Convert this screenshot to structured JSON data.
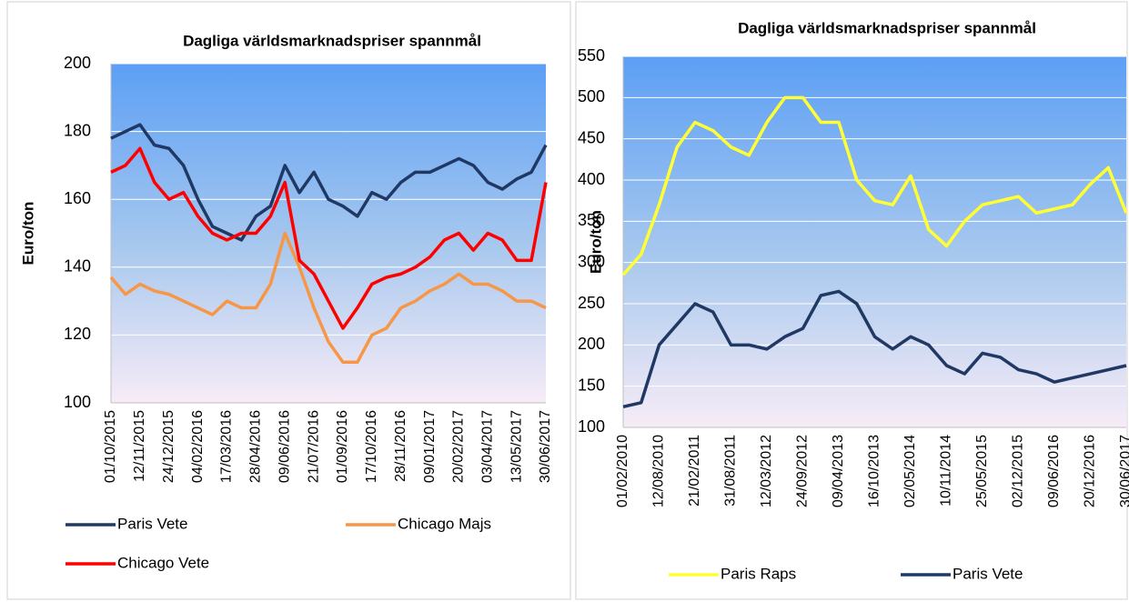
{
  "chart_data": [
    {
      "type": "line",
      "title": "Dagliga världsmarknadspriser spannmål",
      "y_label": "Euro/ton",
      "categories": [
        "01/10/2015",
        null,
        "12/11/2015",
        null,
        "24/12/2015",
        null,
        "04/02/2016",
        null,
        "17/03/2016",
        null,
        "28/04/2016",
        null,
        "09/06/2016",
        null,
        "21/07/2016",
        null,
        "01/09/2016",
        null,
        "17/10/2016",
        null,
        "28/11/2016",
        null,
        "09/01/2017",
        null,
        "20/02/2017",
        null,
        "03/04/2017",
        null,
        "13/05/2017",
        null,
        "30/06/2017"
      ],
      "series": [
        {
          "name": "Paris Vete",
          "color": "#1f3864",
          "values": [
            178,
            180,
            182,
            176,
            175,
            170,
            160,
            152,
            150,
            148,
            155,
            158,
            170,
            162,
            168,
            160,
            158,
            155,
            162,
            160,
            165,
            168,
            168,
            170,
            172,
            170,
            165,
            163,
            166,
            168,
            176
          ]
        },
        {
          "name": "Chicago Majs",
          "color": "#f79646",
          "values": [
            137,
            132,
            135,
            133,
            132,
            130,
            128,
            126,
            130,
            128,
            128,
            135,
            150,
            140,
            128,
            118,
            112,
            112,
            120,
            122,
            128,
            130,
            133,
            135,
            138,
            135,
            135,
            133,
            130,
            130,
            128
          ]
        },
        {
          "name": "Chicago Vete",
          "color": "#ff0000",
          "values": [
            168,
            170,
            175,
            165,
            160,
            162,
            155,
            150,
            148,
            150,
            150,
            155,
            165,
            142,
            138,
            130,
            122,
            128,
            135,
            137,
            138,
            140,
            143,
            148,
            150,
            145,
            150,
            148,
            142,
            142,
            165
          ]
        }
      ],
      "ylim": [
        100,
        200
      ],
      "yticks": [
        100,
        120,
        140,
        160,
        180,
        200
      ],
      "grid": true,
      "legend": "bottom"
    },
    {
      "type": "line",
      "title": "Dagliga världsmarknadspriser spannmål",
      "y_label": "Euro/ton",
      "categories": [
        "01/02/2010",
        null,
        "12/08/2010",
        null,
        "21/02/2011",
        null,
        "31/08/2011",
        null,
        "12/03/2012",
        null,
        "24/09/2012",
        null,
        "09/04/2013",
        null,
        "16/10/2013",
        null,
        "02/05/2014",
        null,
        "10/11/2014",
        null,
        "25/05/2015",
        null,
        "02/12/2015",
        null,
        "09/06/2016",
        null,
        "20/12/2016",
        null,
        "30/06/2017"
      ],
      "series": [
        {
          "name": "Paris Raps",
          "color": "#ffff33",
          "values": [
            285,
            310,
            370,
            440,
            470,
            460,
            440,
            430,
            470,
            500,
            500,
            470,
            470,
            400,
            375,
            370,
            405,
            340,
            320,
            350,
            370,
            375,
            380,
            360,
            365,
            370,
            395,
            415,
            360
          ]
        },
        {
          "name": "Paris Vete",
          "color": "#1f3864",
          "values": [
            125,
            130,
            200,
            225,
            250,
            240,
            200,
            200,
            195,
            210,
            220,
            260,
            265,
            250,
            210,
            195,
            210,
            200,
            175,
            165,
            190,
            185,
            170,
            165,
            155,
            160,
            165,
            170,
            175
          ]
        }
      ],
      "ylim": [
        100,
        550
      ],
      "yticks": [
        100,
        150,
        200,
        250,
        300,
        350,
        400,
        450,
        500,
        550
      ],
      "grid": true,
      "legend": "bottom"
    }
  ]
}
